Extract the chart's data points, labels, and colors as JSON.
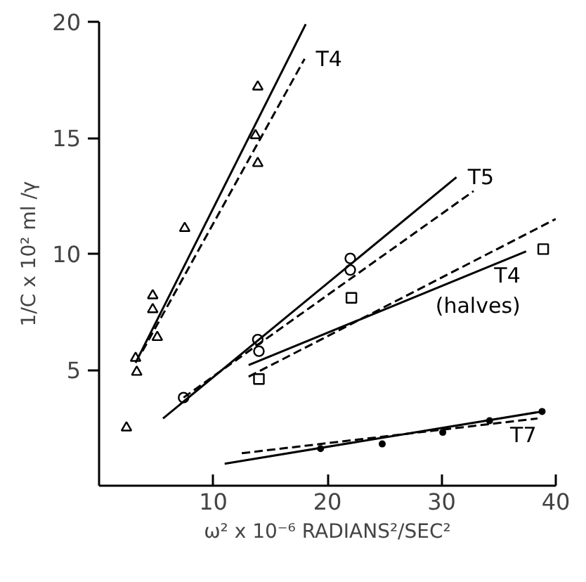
{
  "chart_data": {
    "type": "scatter",
    "xlabel": "ω² x 10⁻⁶ RADIANS²/SEC²",
    "ylabel": "1/C x 10² ml /γ",
    "xlim": [
      0,
      40
    ],
    "ylim": [
      0,
      20
    ],
    "xticks": [
      10,
      20,
      30,
      40
    ],
    "yticks": [
      5,
      10,
      15,
      20
    ],
    "grid": false,
    "series": [
      {
        "marker": "triangle",
        "color": "#000000",
        "x": [
          2.4,
          3.3,
          3.2,
          4.7,
          4.7,
          5.1,
          7.5,
          13.9,
          13.7,
          13.9
        ],
        "values": [
          2.5,
          4.9,
          5.5,
          8.2,
          7.6,
          6.4,
          11.1,
          17.2,
          15.1,
          13.9
        ]
      },
      {
        "type": "line",
        "line_style": "solid",
        "color": "#000000",
        "x": [
          3.2,
          18.1
        ],
        "values": [
          5.3,
          19.9
        ]
      },
      {
        "type": "line",
        "name": "T4",
        "line_style": "dashed",
        "color": "#000000",
        "x": [
          3.8,
          18
        ],
        "values": [
          5.8,
          18.4
        ]
      },
      {
        "marker": "circle",
        "color": "#000000",
        "x": [
          7.4,
          13.9,
          14,
          22,
          22
        ],
        "values": [
          3.8,
          6.3,
          5.8,
          9.8,
          9.3
        ]
      },
      {
        "type": "line",
        "name": "T5",
        "line_style": "solid",
        "color": "#000000",
        "x": [
          5.6,
          31.3
        ],
        "values": [
          2.9,
          13.3
        ]
      },
      {
        "type": "line",
        "line_style": "dashed",
        "color": "#000000",
        "x": [
          7.4,
          32.8
        ],
        "values": [
          3.8,
          12.7
        ]
      },
      {
        "marker": "square",
        "color": "#000000",
        "x": [
          14,
          22.1,
          38.9
        ],
        "values": [
          4.6,
          8.1,
          10.2
        ]
      },
      {
        "type": "line",
        "name": "T4\n(halves)",
        "line_style": "solid",
        "color": "#000000",
        "x": [
          13.1,
          37.4
        ],
        "values": [
          5.2,
          10.1
        ]
      },
      {
        "type": "line",
        "line_style": "dashed",
        "color": "#000000",
        "x": [
          13.1,
          40
        ],
        "values": [
          4.7,
          11.5
        ]
      },
      {
        "marker": "dot",
        "color": "#000000",
        "x": [
          19.4,
          24.8,
          30.1,
          34.2,
          38.8
        ],
        "values": [
          1.6,
          1.8,
          2.3,
          2.8,
          3.2
        ]
      },
      {
        "type": "line",
        "name": "T7",
        "line_style": "solid",
        "color": "#000000",
        "x": [
          11,
          38.8
        ],
        "values": [
          0.95,
          3.2
        ]
      },
      {
        "type": "line",
        "line_style": "dashed",
        "color": "#000000",
        "x": [
          12.5,
          38.4
        ],
        "values": [
          1.4,
          2.9
        ]
      }
    ]
  }
}
